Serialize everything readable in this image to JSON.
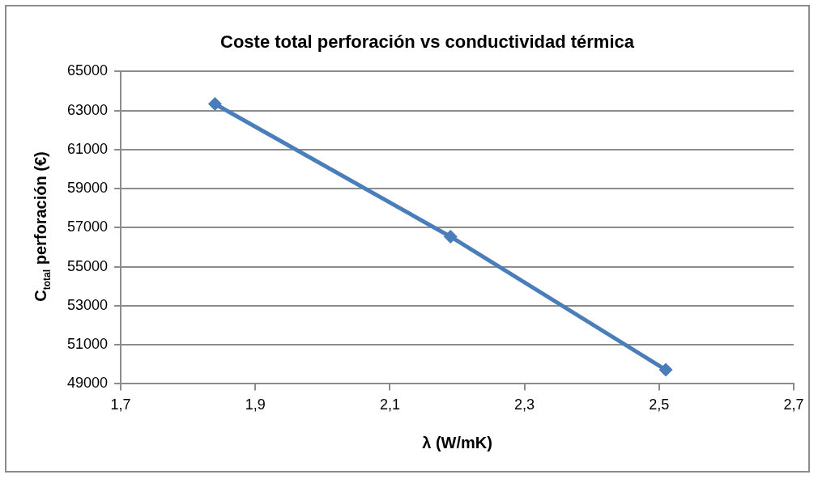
{
  "chart_data": {
    "type": "line",
    "title": "Coste total perforación vs conductividad térmica",
    "xlabel": "λ (W/mK)",
    "ylabel": "C$_{total}$ perforación (€)",
    "x": [
      1.84,
      2.19,
      2.51
    ],
    "series": [
      {
        "color": "#4a7ebb",
        "values": [
          63340,
          56540,
          49720
        ]
      }
    ],
    "xlim": [
      1.7,
      2.7
    ],
    "xticks": [
      {
        "value": 1.7,
        "label": "1,7"
      },
      {
        "value": 1.9,
        "label": "1,9"
      },
      {
        "value": 2.1,
        "label": "2,1"
      },
      {
        "value": 2.3,
        "label": "2,3"
      },
      {
        "value": 2.5,
        "label": "2,5"
      },
      {
        "value": 2.7,
        "label": "2,7"
      }
    ],
    "ylim": [
      49000,
      65000
    ],
    "yticks": [
      49000,
      51000,
      53000,
      55000,
      57000,
      59000,
      61000,
      63000,
      65000
    ],
    "grid": "y",
    "legend": false,
    "marker": "diamond",
    "line_style": "solid"
  }
}
